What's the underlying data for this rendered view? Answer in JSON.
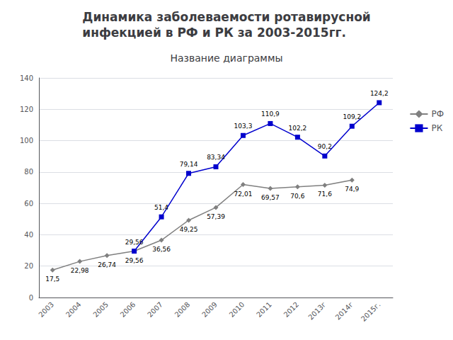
{
  "chart_data": {
    "type": "line",
    "title": "Динамика заболеваемости ротавирусной\nинфекцией в РФ и РК за 2003-2015гг.",
    "subtitle": "Название диаграммы",
    "categories": [
      "2003",
      "2004",
      "2005",
      "2006",
      "2007",
      "2008",
      "2009",
      "2010",
      "2011",
      "2012",
      "2013г",
      "2014г",
      "2015г."
    ],
    "series": [
      {
        "name": "РФ",
        "color": "#808080",
        "marker": "diamond",
        "values": [
          17.5,
          22.98,
          26.74,
          29.56,
          36.56,
          49.25,
          57.39,
          72.01,
          69.57,
          70.6,
          71.6,
          74.9,
          null
        ],
        "value_labels": [
          "17,5",
          "22,98",
          "26,74",
          "29,56",
          "36,56",
          "49,25",
          "57,39",
          "72,01",
          "69,57",
          "70,6",
          "71,6",
          "74,9",
          null
        ]
      },
      {
        "name": "РК",
        "color": "#0000cd",
        "marker": "square",
        "values": [
          null,
          null,
          null,
          29.56,
          51.4,
          79.14,
          83.34,
          103.3,
          110.9,
          102.2,
          90.2,
          109.2,
          124.2
        ],
        "value_labels": [
          null,
          null,
          null,
          "29,56",
          "51,4",
          "79,14",
          "83,34",
          "103,3",
          "110,9",
          "102,2",
          "90,2",
          "109,2",
          "124,2"
        ]
      }
    ],
    "ylim": [
      0,
      140
    ],
    "yticks": [
      0,
      20,
      40,
      60,
      80,
      100,
      120,
      140
    ],
    "grid": true,
    "legend": "right",
    "data_labels": true
  }
}
